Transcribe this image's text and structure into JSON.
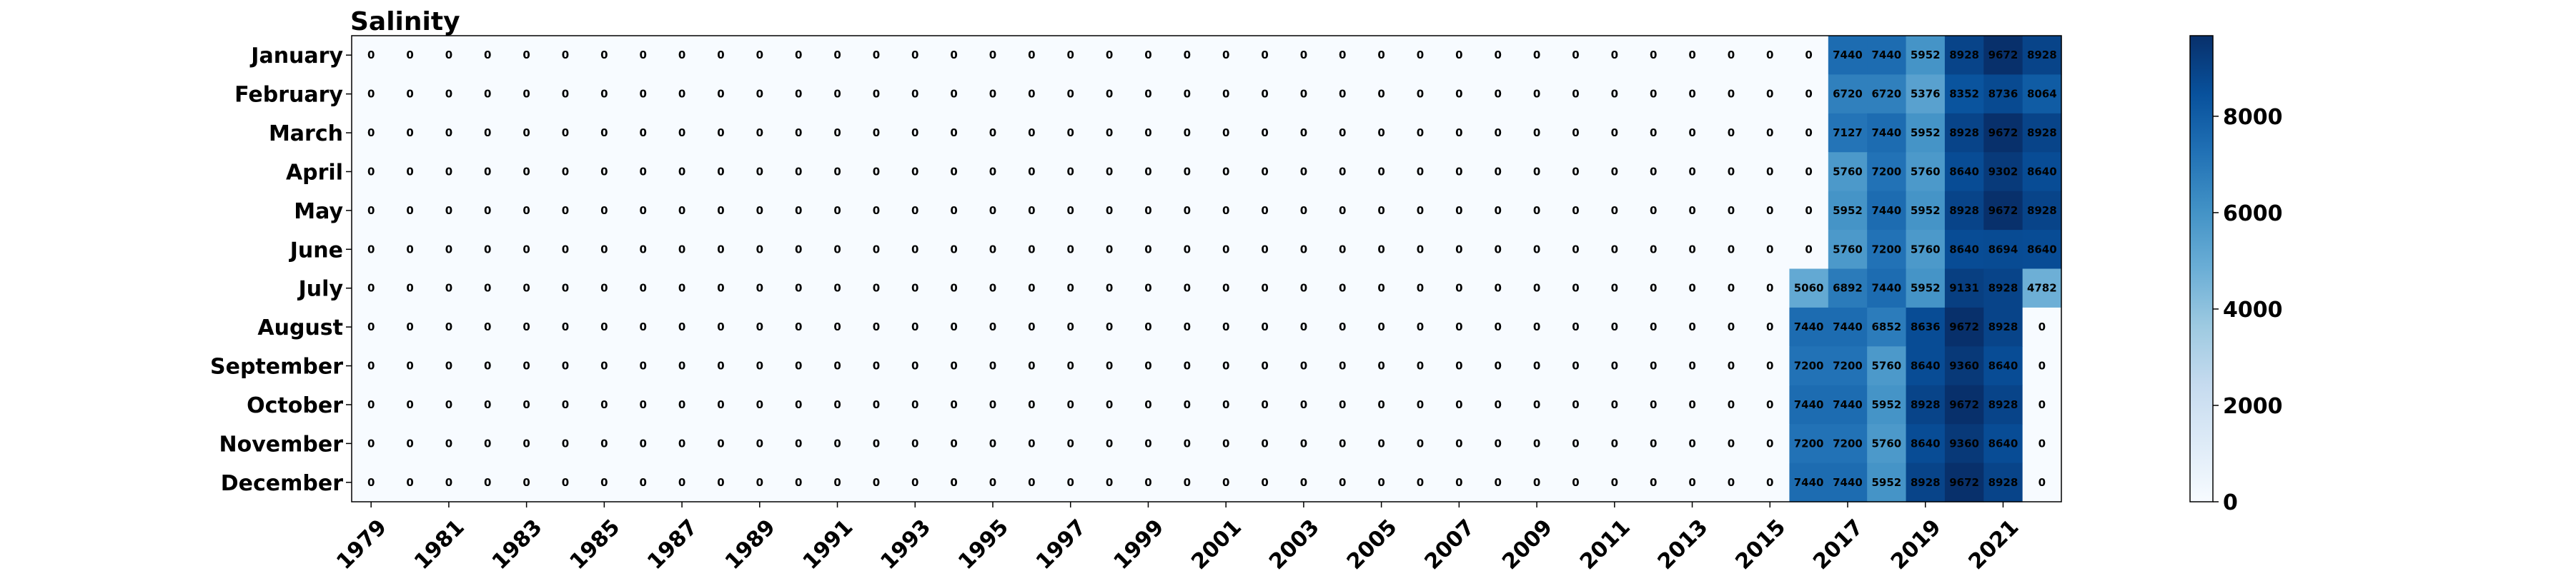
{
  "chart_data": {
    "type": "heatmap",
    "title": "Salinity",
    "years": [
      1979,
      1980,
      1981,
      1982,
      1983,
      1984,
      1985,
      1986,
      1987,
      1988,
      1989,
      1990,
      1991,
      1992,
      1993,
      1994,
      1995,
      1996,
      1997,
      1998,
      1999,
      2000,
      2001,
      2002,
      2003,
      2004,
      2005,
      2006,
      2007,
      2008,
      2009,
      2010,
      2011,
      2012,
      2013,
      2014,
      2015,
      2016,
      2017,
      2018,
      2019,
      2020,
      2021,
      2022
    ],
    "x_tick_labels": [
      "1979",
      "1981",
      "1983",
      "1985",
      "1987",
      "1989",
      "1991",
      "1993",
      "1995",
      "1997",
      "1999",
      "2001",
      "2003",
      "2005",
      "2007",
      "2009",
      "2011",
      "2013",
      "2015",
      "2017",
      "2019",
      "2021"
    ],
    "months": [
      "January",
      "February",
      "March",
      "April",
      "May",
      "June",
      "July",
      "August",
      "September",
      "October",
      "November",
      "December"
    ],
    "recent_values": [
      [
        0,
        7440,
        7440,
        5952,
        8928,
        9672,
        8928
      ],
      [
        0,
        6720,
        6720,
        5376,
        8352,
        8736,
        8064
      ],
      [
        0,
        7127,
        7440,
        5952,
        8928,
        9672,
        8928
      ],
      [
        0,
        5760,
        7200,
        5760,
        8640,
        9302,
        8640
      ],
      [
        0,
        5952,
        7440,
        5952,
        8928,
        9672,
        8928
      ],
      [
        0,
        5760,
        7200,
        5760,
        8640,
        8694,
        8640
      ],
      [
        5060,
        6892,
        7440,
        5952,
        9131,
        8928,
        4782
      ],
      [
        7440,
        7440,
        6852,
        8636,
        9672,
        8928,
        0
      ],
      [
        7200,
        7200,
        5760,
        8640,
        9360,
        8640,
        0
      ],
      [
        7440,
        7440,
        5952,
        8928,
        9672,
        8928,
        0
      ],
      [
        7200,
        7200,
        5760,
        8640,
        9360,
        8640,
        0
      ],
      [
        7440,
        7440,
        5952,
        8928,
        9672,
        8928,
        0
      ]
    ],
    "recent_start_year": 2016,
    "vmin": 0,
    "vmax": 9672,
    "colormap": "Blues",
    "colorbar_ticks": [
      0,
      2000,
      4000,
      6000,
      8000
    ],
    "colors": {
      "low": "#f7fbff",
      "high": "#08306b"
    }
  }
}
